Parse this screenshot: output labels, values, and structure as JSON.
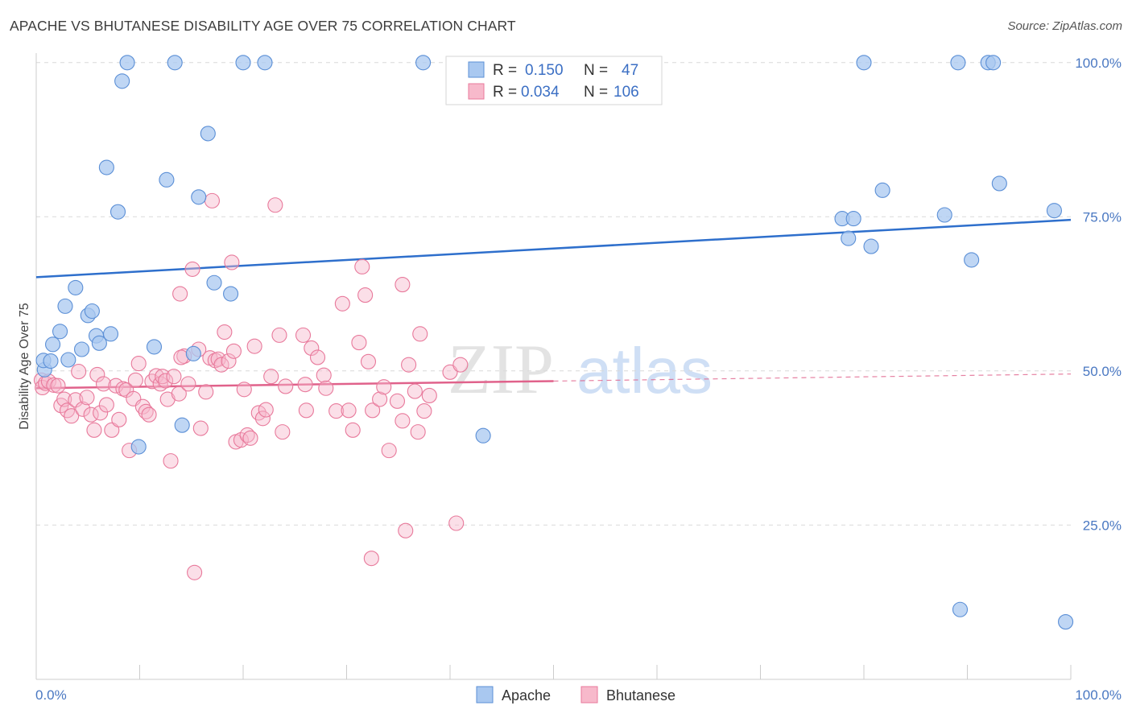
{
  "header": {
    "title": "APACHE VS BHUTANESE DISABILITY AGE OVER 75 CORRELATION CHART",
    "source": "Source: ZipAtlas.com"
  },
  "watermark": {
    "zip": "ZIP",
    "atlas": "atlas"
  },
  "colors": {
    "apache_fill": "#a9c8f0",
    "apache_stroke": "#5b8fd6",
    "apache_line": "#2e6fcc",
    "bhutanese_fill": "#f7b9cb",
    "bhutanese_stroke": "#e8799b",
    "bhutanese_line": "#e0628b",
    "grid": "#d9d9d9",
    "tick_text": "#4a78c2"
  },
  "legend": {
    "rows": [
      {
        "r_label": "R =",
        "r_value": "0.150",
        "n_label": "N =",
        "n_value": "47"
      },
      {
        "r_label": "R =",
        "r_value": "0.034",
        "n_label": "N =",
        "n_value": "106"
      }
    ]
  },
  "chart_data": {
    "type": "scatter",
    "xlabel": "",
    "ylabel": "Disability Age Over 75",
    "xlim": [
      0,
      100
    ],
    "ylim": [
      0,
      104
    ],
    "x_tick_labels": [
      {
        "value": 0,
        "label": "0.0%"
      },
      {
        "value": 100,
        "label": "100.0%"
      }
    ],
    "y_tick_labels": [
      {
        "value": 25,
        "label": "25.0%"
      },
      {
        "value": 50,
        "label": "50.0%"
      },
      {
        "value": 75,
        "label": "75.0%"
      },
      {
        "value": 100,
        "label": "100.0%"
      }
    ],
    "grid": true,
    "legend_position": "top-center",
    "series": [
      {
        "name": "Apache",
        "trend": {
          "x": [
            0,
            100
          ],
          "y": [
            65.2,
            74.5
          ],
          "solid_to": 100
        },
        "points": [
          [
            0.8,
            50.2
          ],
          [
            0.7,
            51.7
          ],
          [
            1.4,
            51.6
          ],
          [
            1.6,
            54.3
          ],
          [
            2.3,
            56.4
          ],
          [
            2.8,
            60.5
          ],
          [
            3.1,
            51.8
          ],
          [
            3.8,
            63.5
          ],
          [
            4.4,
            53.5
          ],
          [
            5.0,
            59.0
          ],
          [
            5.4,
            59.7
          ],
          [
            5.8,
            55.7
          ],
          [
            6.1,
            54.5
          ],
          [
            7.2,
            56.0
          ],
          [
            6.8,
            83.0
          ],
          [
            7.9,
            75.8
          ],
          [
            8.3,
            97.0
          ],
          [
            8.8,
            100
          ],
          [
            9.9,
            37.7
          ],
          [
            11.4,
            53.9
          ],
          [
            12.6,
            81.0
          ],
          [
            13.4,
            100
          ],
          [
            14.1,
            41.2
          ],
          [
            15.2,
            52.8
          ],
          [
            15.7,
            78.2
          ],
          [
            16.6,
            88.5
          ],
          [
            17.2,
            64.3
          ],
          [
            18.8,
            62.5
          ],
          [
            20.0,
            100
          ],
          [
            22.1,
            100
          ],
          [
            37.4,
            100
          ],
          [
            43.2,
            39.5
          ],
          [
            77.9,
            74.7
          ],
          [
            78.5,
            71.5
          ],
          [
            79.0,
            74.7
          ],
          [
            80.0,
            100
          ],
          [
            80.7,
            70.2
          ],
          [
            81.8,
            79.3
          ],
          [
            87.8,
            75.3
          ],
          [
            89.1,
            100
          ],
          [
            89.3,
            11.3
          ],
          [
            90.4,
            68.0
          ],
          [
            92.0,
            100
          ],
          [
            92.5,
            100
          ],
          [
            93.1,
            80.4
          ],
          [
            98.4,
            76.0
          ],
          [
            99.5,
            9.3
          ]
        ]
      },
      {
        "name": "Bhutanese",
        "trend": {
          "x": [
            0,
            100
          ],
          "y": [
            47.2,
            49.5
          ],
          "solid_to": 50
        },
        "points": [
          [
            0.5,
            48.5
          ],
          [
            0.6,
            47.3
          ],
          [
            0.9,
            48.0
          ],
          [
            1.2,
            48.3
          ],
          [
            1.7,
            47.7
          ],
          [
            2.1,
            47.6
          ],
          [
            2.4,
            44.4
          ],
          [
            2.7,
            45.4
          ],
          [
            3.0,
            43.6
          ],
          [
            3.4,
            42.7
          ],
          [
            3.8,
            45.3
          ],
          [
            4.1,
            49.9
          ],
          [
            4.5,
            43.8
          ],
          [
            4.9,
            45.7
          ],
          [
            5.3,
            42.9
          ],
          [
            5.6,
            40.4
          ],
          [
            5.9,
            49.4
          ],
          [
            6.2,
            43.2
          ],
          [
            6.5,
            47.9
          ],
          [
            6.8,
            44.5
          ],
          [
            7.3,
            40.4
          ],
          [
            7.7,
            47.6
          ],
          [
            8.0,
            42.1
          ],
          [
            8.4,
            47.1
          ],
          [
            8.7,
            46.9
          ],
          [
            9.0,
            37.1
          ],
          [
            9.4,
            45.5
          ],
          [
            9.6,
            48.5
          ],
          [
            9.9,
            51.2
          ],
          [
            10.3,
            44.2
          ],
          [
            10.6,
            43.4
          ],
          [
            10.9,
            42.9
          ],
          [
            11.2,
            48.3
          ],
          [
            11.6,
            49.2
          ],
          [
            12.0,
            47.9
          ],
          [
            12.2,
            49.1
          ],
          [
            12.5,
            48.4
          ],
          [
            12.7,
            45.4
          ],
          [
            13.0,
            35.4
          ],
          [
            13.3,
            49.1
          ],
          [
            13.8,
            46.3
          ],
          [
            13.9,
            62.5
          ],
          [
            14.3,
            52.4
          ],
          [
            14.7,
            47.9
          ],
          [
            15.1,
            66.5
          ],
          [
            15.3,
            17.3
          ],
          [
            15.7,
            53.5
          ],
          [
            15.9,
            40.7
          ],
          [
            16.4,
            46.6
          ],
          [
            16.8,
            52.1
          ],
          [
            17.0,
            77.6
          ],
          [
            17.3,
            51.7
          ],
          [
            17.6,
            51.9
          ],
          [
            17.9,
            51.0
          ],
          [
            18.2,
            56.3
          ],
          [
            18.6,
            51.6
          ],
          [
            18.9,
            67.6
          ],
          [
            19.1,
            53.2
          ],
          [
            19.3,
            38.5
          ],
          [
            19.8,
            38.8
          ],
          [
            20.1,
            47.0
          ],
          [
            20.4,
            39.6
          ],
          [
            20.7,
            39.1
          ],
          [
            21.1,
            54.0
          ],
          [
            21.5,
            43.2
          ],
          [
            21.9,
            42.3
          ],
          [
            22.2,
            43.7
          ],
          [
            22.7,
            49.1
          ],
          [
            23.1,
            76.9
          ],
          [
            23.5,
            55.8
          ],
          [
            23.8,
            40.1
          ],
          [
            24.1,
            47.5
          ],
          [
            25.8,
            55.8
          ],
          [
            26.1,
            43.6
          ],
          [
            26.6,
            53.7
          ],
          [
            27.2,
            52.2
          ],
          [
            27.8,
            49.3
          ],
          [
            28.0,
            47.2
          ],
          [
            29.0,
            43.5
          ],
          [
            29.6,
            60.9
          ],
          [
            30.2,
            43.6
          ],
          [
            30.6,
            40.4
          ],
          [
            31.5,
            66.9
          ],
          [
            31.8,
            62.3
          ],
          [
            32.1,
            51.5
          ],
          [
            32.5,
            43.6
          ],
          [
            33.2,
            45.4
          ],
          [
            33.6,
            47.4
          ],
          [
            34.1,
            37.1
          ],
          [
            34.9,
            45.1
          ],
          [
            35.4,
            64.0
          ],
          [
            35.7,
            24.1
          ],
          [
            36.0,
            51.0
          ],
          [
            36.6,
            46.7
          ],
          [
            36.9,
            40.1
          ],
          [
            37.1,
            56.0
          ],
          [
            37.5,
            43.5
          ],
          [
            38.0,
            46.0
          ],
          [
            40.0,
            49.8
          ],
          [
            40.6,
            25.3
          ],
          [
            41.0,
            51.0
          ],
          [
            32.4,
            19.6
          ],
          [
            31.2,
            54.6
          ],
          [
            26.0,
            47.8
          ],
          [
            14.0,
            52.2
          ],
          [
            35.4,
            41.9
          ]
        ]
      }
    ]
  }
}
